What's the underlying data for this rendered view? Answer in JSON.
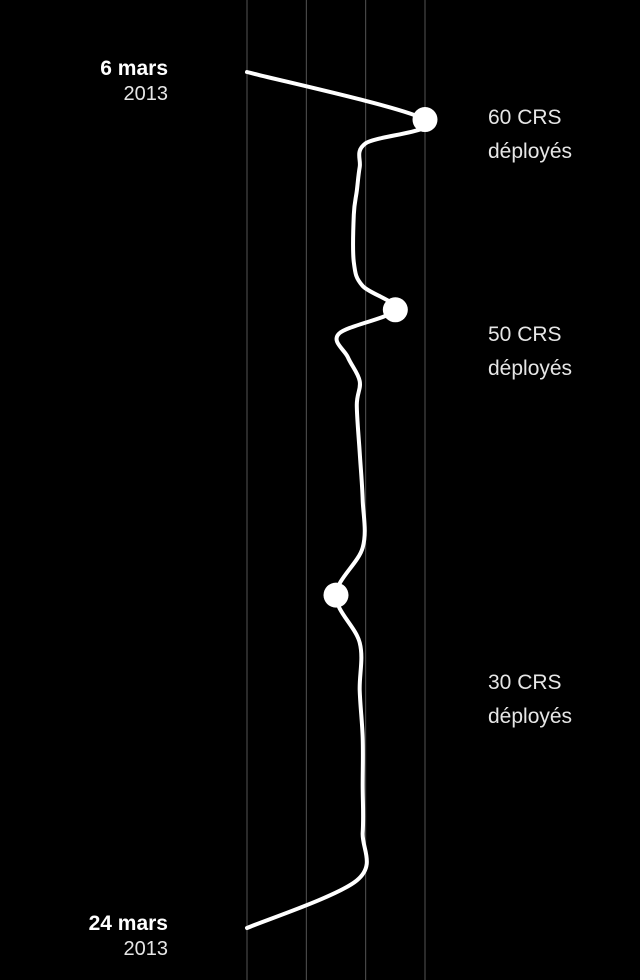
{
  "chart_data": {
    "type": "line",
    "orientation": "vertical-time",
    "background": "#000000",
    "line_color": "#ffffff",
    "grid_color": "#555555",
    "start_date": {
      "day": "6 mars",
      "year": "2013"
    },
    "end_date": {
      "day": "24 mars",
      "year": "2013"
    },
    "ylim": [
      "2013-03-06",
      "2013-03-24"
    ],
    "xlim": [
      0,
      60
    ],
    "grid_values": [
      20,
      40,
      60
    ],
    "points": [
      {
        "date": "2013-03-06",
        "value": 0
      },
      {
        "date": "2013-03-07",
        "value": 60
      },
      {
        "date": "2013-03-07T12",
        "value": 40
      },
      {
        "date": "2013-03-08",
        "value": 38
      },
      {
        "date": "2013-03-08T12",
        "value": 37
      },
      {
        "date": "2013-03-09",
        "value": 36
      },
      {
        "date": "2013-03-10",
        "value": 36
      },
      {
        "date": "2013-03-10T12",
        "value": 39
      },
      {
        "date": "2013-03-11",
        "value": 50
      },
      {
        "date": "2013-03-11T12",
        "value": 31
      },
      {
        "date": "2013-03-12",
        "value": 34
      },
      {
        "date": "2013-03-12T12",
        "value": 38
      },
      {
        "date": "2013-03-13",
        "value": 37
      },
      {
        "date": "2013-03-14",
        "value": 38
      },
      {
        "date": "2013-03-15",
        "value": 39
      },
      {
        "date": "2013-03-16",
        "value": 39
      },
      {
        "date": "2013-03-17",
        "value": 30
      },
      {
        "date": "2013-03-18",
        "value": 38
      },
      {
        "date": "2013-03-19",
        "value": 38
      },
      {
        "date": "2013-03-20",
        "value": 39
      },
      {
        "date": "2013-03-21",
        "value": 39
      },
      {
        "date": "2013-03-22",
        "value": 39
      },
      {
        "date": "2013-03-23",
        "value": 37
      },
      {
        "date": "2013-03-24",
        "value": 0
      }
    ],
    "markers": [
      {
        "date": "2013-03-07",
        "value": 60,
        "label_line1": "60 CRS",
        "label_line2": "déployés"
      },
      {
        "date": "2013-03-11",
        "value": 50,
        "label_line1": "50 CRS",
        "label_line2": "déployés"
      },
      {
        "date": "2013-03-17",
        "value": 30,
        "label_line1": "30 CRS",
        "label_line2": "déployés"
      }
    ]
  }
}
